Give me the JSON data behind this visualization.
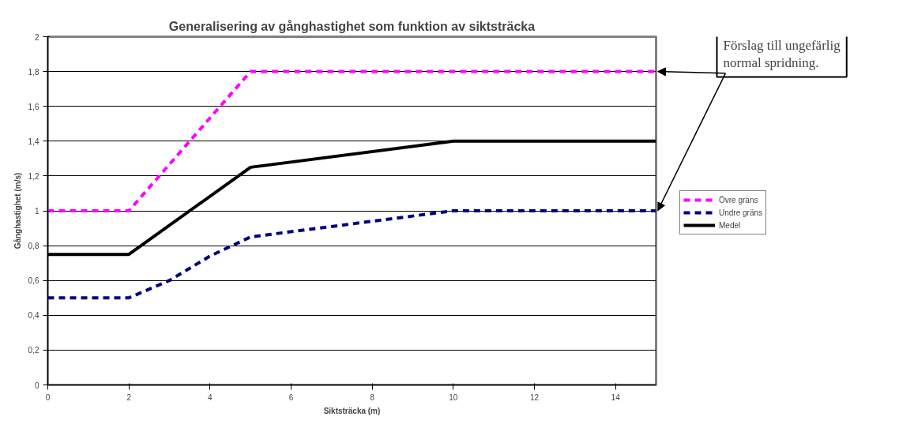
{
  "chart_data": {
    "type": "line",
    "title": "Generalisering av gånghastighet som funktion av siktsträcka",
    "xlabel": "Siktsträcka (m)",
    "ylabel": "Gånghastighet (m/s)",
    "xlim": [
      0,
      15
    ],
    "xticks": [
      0,
      2,
      4,
      6,
      8,
      10,
      12,
      14
    ],
    "ylim": [
      0,
      2
    ],
    "yticks": [
      {
        "value": 0,
        "label": "0"
      },
      {
        "value": 0.2,
        "label": "0,2"
      },
      {
        "value": 0.4,
        "label": "0,4"
      },
      {
        "value": 0.6,
        "label": "0,6"
      },
      {
        "value": 0.8,
        "label": "0,8"
      },
      {
        "value": 1,
        "label": "1"
      },
      {
        "value": 1.2,
        "label": "1,2"
      },
      {
        "value": 1.4,
        "label": "1,4"
      },
      {
        "value": 1.6,
        "label": "1,6"
      },
      {
        "value": 1.8,
        "label": "1,8"
      },
      {
        "value": 2,
        "label": "2"
      }
    ],
    "grid": "y",
    "legend": "right",
    "marker": "none",
    "annotations": [
      "Förslag till ungefärlig normal spridning."
    ],
    "series": [
      {
        "name": "Övre gräns",
        "color": "#ff00ff",
        "line_style": "dashed",
        "x": [
          0,
          2,
          5,
          10,
          15
        ],
        "values": [
          1,
          1,
          1.8,
          1.8,
          1.8
        ]
      },
      {
        "name": "Undre gräns",
        "color": "#000080",
        "line_style": "dashed",
        "x": [
          0,
          2,
          3,
          4,
          5,
          10,
          15
        ],
        "values": [
          0.5,
          0.5,
          0.6,
          0.74,
          0.85,
          1,
          1
        ]
      },
      {
        "name": "Medel",
        "color": "#000000",
        "line_style": "solid",
        "x": [
          0,
          2,
          5,
          10,
          15
        ],
        "values": [
          0.75,
          0.75,
          1.25,
          1.4,
          1.4
        ]
      }
    ]
  }
}
